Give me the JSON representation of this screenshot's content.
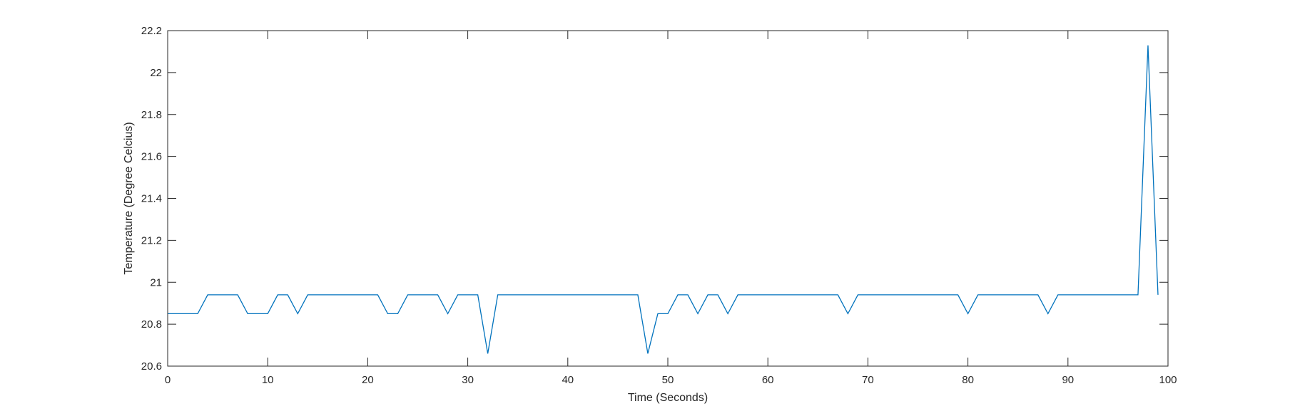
{
  "chart_data": {
    "type": "line",
    "title": "",
    "xlabel": "Time (Seconds)",
    "ylabel": "Temperature (Degree Celcius)",
    "xlim": [
      0,
      100
    ],
    "ylim": [
      20.6,
      22.2
    ],
    "xticks": [
      0,
      10,
      20,
      30,
      40,
      50,
      60,
      70,
      80,
      90,
      100
    ],
    "xtick_labels": [
      "0",
      "10",
      "20",
      "30",
      "40",
      "50",
      "60",
      "70",
      "80",
      "90",
      "100"
    ],
    "yticks": [
      20.6,
      20.8,
      21,
      21.2,
      21.4,
      21.6,
      21.8,
      22,
      22.2
    ],
    "ytick_labels": [
      "20.6",
      "20.8",
      "21",
      "21.2",
      "21.4",
      "21.6",
      "21.8",
      "22",
      "22.2"
    ],
    "grid": false,
    "legend": "none",
    "line_color": "#0072BD",
    "series": [
      {
        "x": [
          0,
          1,
          2,
          3,
          4,
          5,
          6,
          7,
          8,
          9,
          10,
          11,
          12,
          13,
          14,
          15,
          16,
          17,
          18,
          19,
          20,
          21,
          22,
          23,
          24,
          25,
          26,
          27,
          28,
          29,
          30,
          31,
          32,
          33,
          34,
          35,
          36,
          37,
          38,
          39,
          40,
          41,
          42,
          43,
          44,
          45,
          46,
          47,
          48,
          49,
          50,
          51,
          52,
          53,
          54,
          55,
          56,
          57,
          58,
          59,
          60,
          61,
          62,
          63,
          64,
          65,
          66,
          67,
          68,
          69,
          70,
          71,
          72,
          73,
          74,
          75,
          76,
          77,
          78,
          79,
          80,
          81,
          82,
          83,
          84,
          85,
          86,
          87,
          88,
          89,
          90,
          91,
          92,
          93,
          94,
          95,
          96,
          97,
          98,
          99
        ],
        "values": [
          20.85,
          20.85,
          20.85,
          20.85,
          20.94,
          20.94,
          20.94,
          20.94,
          20.85,
          20.85,
          20.85,
          20.94,
          20.94,
          20.85,
          20.94,
          20.94,
          20.94,
          20.94,
          20.94,
          20.94,
          20.94,
          20.94,
          20.85,
          20.85,
          20.94,
          20.94,
          20.94,
          20.94,
          20.85,
          20.94,
          20.94,
          20.94,
          20.66,
          20.94,
          20.94,
          20.94,
          20.94,
          20.94,
          20.94,
          20.94,
          20.94,
          20.94,
          20.94,
          20.94,
          20.94,
          20.94,
          20.94,
          20.94,
          20.66,
          20.85,
          20.85,
          20.94,
          20.94,
          20.85,
          20.94,
          20.94,
          20.85,
          20.94,
          20.94,
          20.94,
          20.94,
          20.94,
          20.94,
          20.94,
          20.94,
          20.94,
          20.94,
          20.94,
          20.85,
          20.94,
          20.94,
          20.94,
          20.94,
          20.94,
          20.94,
          20.94,
          20.94,
          20.94,
          20.94,
          20.94,
          20.85,
          20.94,
          20.94,
          20.94,
          20.94,
          20.94,
          20.94,
          20.94,
          20.85,
          20.94,
          20.94,
          20.94,
          20.94,
          20.94,
          20.94,
          20.94,
          20.94,
          20.94,
          22.13,
          20.94
        ]
      }
    ]
  }
}
